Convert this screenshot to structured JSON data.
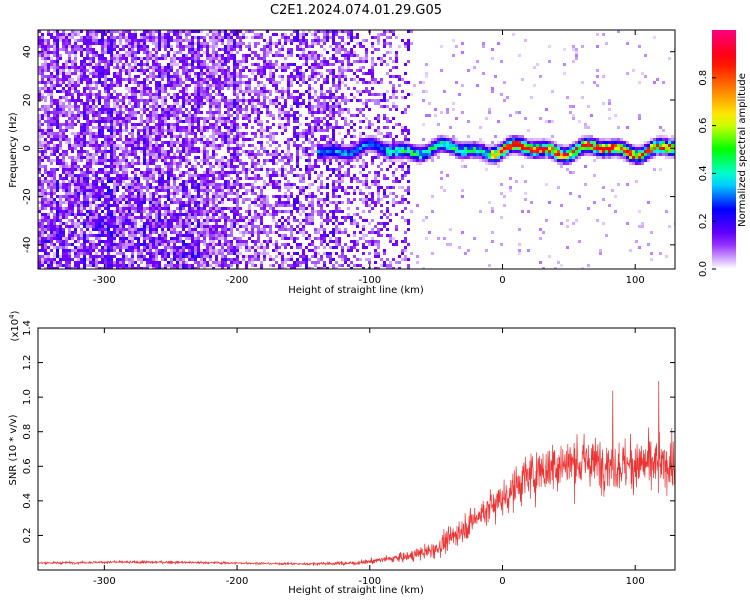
{
  "title": "C2E1.2024.074.01.29.G05",
  "chart_data": [
    {
      "type": "heatmap",
      "xlabel": "Height of straight line (km)",
      "ylabel": "Frequency (Hz)",
      "xlim": [
        -350,
        130
      ],
      "ylim": [
        -50,
        49
      ],
      "xticks": [
        -300,
        -200,
        -100,
        0,
        100
      ],
      "xtick_labels": [
        "-300",
        "-200",
        "-100",
        "0",
        "100"
      ],
      "yticks": [
        -40,
        -20,
        0,
        20,
        40
      ],
      "ytick_labels": [
        "-40",
        "-20",
        "0",
        "20",
        "40"
      ],
      "colorbar": {
        "label": "Normalized spectral amplitude",
        "range": [
          0,
          1
        ],
        "ticks": [
          0.0,
          0.2,
          0.4,
          0.6,
          0.8
        ],
        "tick_labels": [
          "0.0",
          "0.2",
          "0.4",
          "0.6",
          "0.8"
        ],
        "colormap": [
          "#ffffff",
          "#7a00ff",
          "#0000ff",
          "#00ffff",
          "#00ff00",
          "#ffff00",
          "#ff8000",
          "#ff0000",
          "#ff0080"
        ]
      },
      "grid": false,
      "features": {
        "broadband_noise_region_km": [
          -350,
          -70
        ],
        "signal_band_center_hz": 0,
        "signal_band_halfwidth_hz": 3,
        "strongest_segment_km": [
          -10,
          125
        ],
        "strongest_segment_amplitude": 0.9
      }
    },
    {
      "type": "line",
      "xlabel": "Height of straight line (km)",
      "ylabel": "SNR (10 * v/v)",
      "y_multiplier": "(x10",
      "y_multiplier_exp": "4",
      "y_multiplier_close": ")",
      "xlim": [
        -350,
        130
      ],
      "ylim": [
        0.0,
        1.4
      ],
      "xticks": [
        -300,
        -200,
        -100,
        0,
        100
      ],
      "xtick_labels": [
        "-300",
        "-200",
        "-100",
        "0",
        "100"
      ],
      "yticks": [
        0.2,
        0.4,
        0.6,
        0.8,
        1.0,
        1.2,
        1.4
      ],
      "ytick_labels": [
        "0.2",
        "0.4",
        "0.6",
        "0.8",
        "1.0",
        "1.2",
        "1.4"
      ],
      "grid": false,
      "series": [
        {
          "color": "#ee3333",
          "x": [
            -350,
            -300,
            -250,
            -200,
            -150,
            -110,
            -90,
            -70,
            -50,
            -40,
            -30,
            -20,
            -10,
            0,
            10,
            20,
            30,
            40,
            50,
            60,
            70,
            80,
            90,
            100,
            110,
            120,
            130
          ],
          "y": [
            0.04,
            0.045,
            0.045,
            0.04,
            0.035,
            0.04,
            0.06,
            0.08,
            0.12,
            0.18,
            0.24,
            0.3,
            0.36,
            0.42,
            0.48,
            0.54,
            0.58,
            0.6,
            0.62,
            0.62,
            0.62,
            0.62,
            0.6,
            0.6,
            0.62,
            0.6,
            0.6
          ],
          "amplitude": [
            0.01,
            0.012,
            0.012,
            0.01,
            0.01,
            0.02,
            0.03,
            0.05,
            0.08,
            0.1,
            0.13,
            0.15,
            0.16,
            0.18,
            0.2,
            0.22,
            0.25,
            0.25,
            0.25,
            0.24,
            0.24,
            0.24,
            0.24,
            0.24,
            0.24,
            0.24,
            0.24
          ]
        }
      ]
    }
  ]
}
